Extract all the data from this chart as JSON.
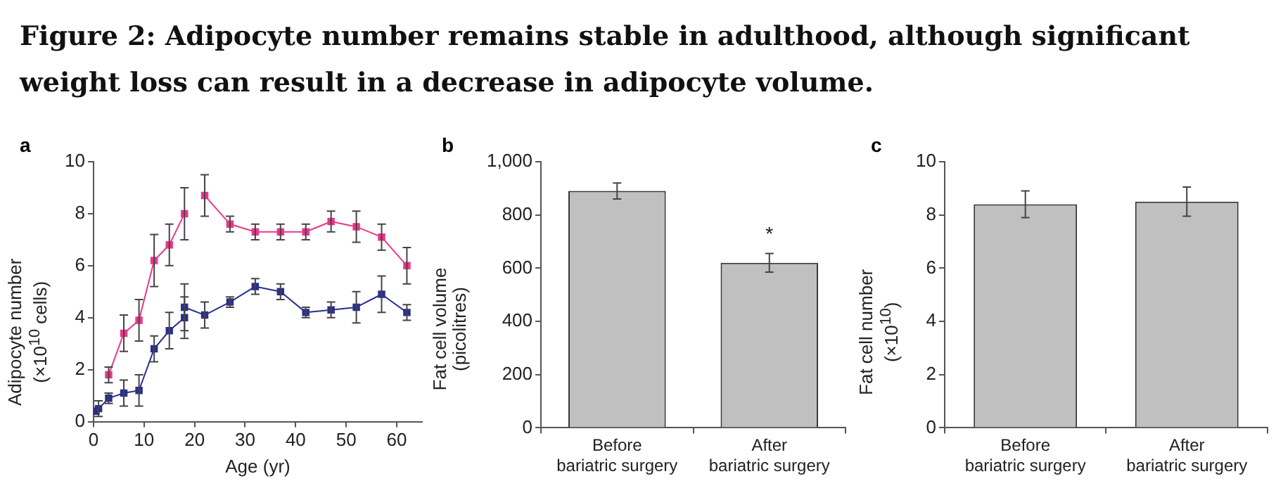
{
  "chart_data": [
    {
      "type": "line",
      "title": "Figure 2: Adipocyte number remains stable in adulthood, although significant weight loss can result in a decrease in adipocyte volume.",
      "subtitle": "a",
      "xlabel": "Age (yr)",
      "ylabel": "Adipocyte number (×10$^{10}$ cells)",
      "xlim": [
        0,
        65
      ],
      "xticks": [
        0,
        10,
        20,
        30,
        40,
        50,
        60
      ],
      "ylim": [
        0,
        10
      ],
      "yticks": [
        0,
        2,
        4,
        6,
        8,
        10
      ],
      "marker": "square",
      "grid": false,
      "legend": false,
      "series": [
        {
          "color": "#e8388a",
          "x": [
            3,
            6,
            9,
            12,
            15,
            18
          ],
          "values": [
            1.8,
            3.4,
            3.9,
            6.2,
            6.8,
            8.0
          ],
          "errors": [
            0.3,
            0.7,
            0.8,
            1.0,
            0.8,
            1.0
          ]
        },
        {
          "color": "#e8388a",
          "x": [
            22,
            27,
            32,
            37,
            42,
            47,
            52,
            57,
            62
          ],
          "values": [
            8.7,
            7.6,
            7.3,
            7.3,
            7.3,
            7.7,
            7.5,
            7.1,
            6.0
          ],
          "errors": [
            0.8,
            0.3,
            0.3,
            0.3,
            0.3,
            0.4,
            0.6,
            0.5,
            0.7
          ]
        },
        {
          "color": "#2b2f8c",
          "x": [
            0.5,
            1,
            3,
            6,
            9,
            12,
            15,
            18,
            18,
            22,
            27,
            32,
            37,
            42,
            47,
            52,
            57,
            62
          ],
          "values": [
            0.4,
            0.5,
            0.9,
            1.1,
            1.2,
            2.8,
            3.5,
            4.0,
            4.4,
            4.1,
            4.6,
            5.2,
            5.0,
            4.2,
            4.3,
            4.4,
            4.9,
            4.2
          ],
          "errors": [
            null,
            0.3,
            0.2,
            0.5,
            0.6,
            0.5,
            0.7,
            0.8,
            0.9,
            0.5,
            0.2,
            0.3,
            0.3,
            0.2,
            0.3,
            0.6,
            0.7,
            0.3
          ]
        }
      ]
    },
    {
      "type": "bar",
      "subtitle": "b",
      "ylabel": "Fat cell volume (picolitres)",
      "categories": [
        "Before bariatric surgery",
        "After bariatric surgery"
      ],
      "values": [
        890,
        620
      ],
      "errors": [
        30,
        35
      ],
      "color": "#c0c0c0",
      "ylim": [
        0,
        1000
      ],
      "yticks": [
        0,
        200,
        400,
        600,
        800,
        {
          "value": 1000,
          "label": "1,000"
        }
      ],
      "grid": false,
      "legend": false,
      "annotations": [
        "*"
      ]
    },
    {
      "type": "bar",
      "subtitle": "c",
      "ylabel": "Fat cell number (×10$^{10}$)",
      "categories": [
        "Before bariatric surgery",
        "After bariatric surgery"
      ],
      "values": [
        8.4,
        8.5
      ],
      "errors": [
        0.5,
        0.55
      ],
      "color": "#c0c0c0",
      "ylim": [
        0,
        10
      ],
      "yticks": [
        0,
        2,
        4,
        6,
        8,
        10
      ],
      "grid": false,
      "legend": false
    }
  ]
}
